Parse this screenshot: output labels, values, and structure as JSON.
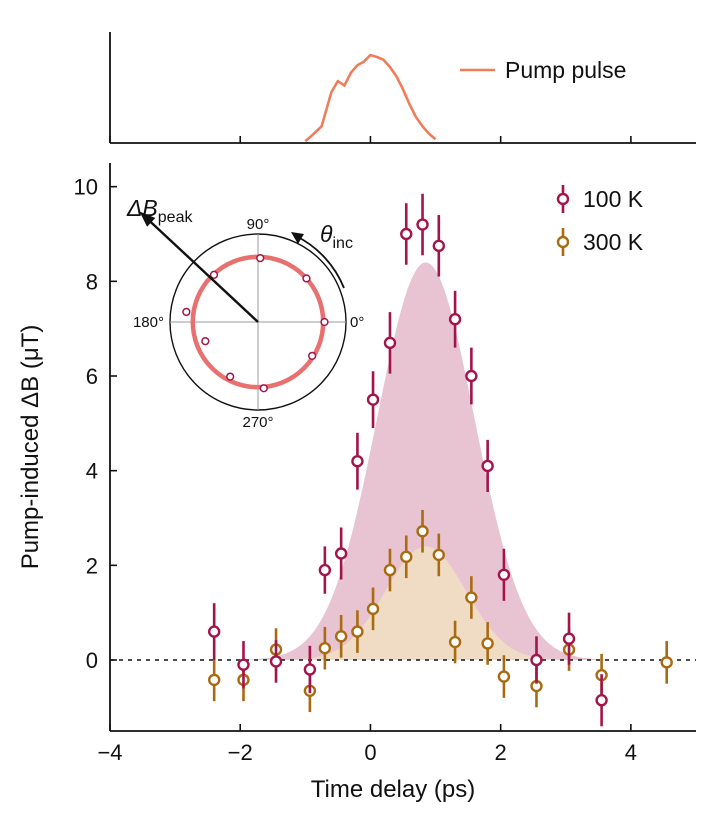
{
  "chart_data": [
    {
      "type": "line",
      "name": "pump-pulse-panel",
      "title": "",
      "legend": {
        "label": "Pump pulse",
        "placement": "top-right"
      },
      "color": "#ef7d5a",
      "series": [
        {
          "name": "Pump pulse",
          "x": [
            -1.0,
            -0.9,
            -0.75,
            -0.6,
            -0.5,
            -0.4,
            -0.3,
            -0.2,
            -0.1,
            0.0,
            0.1,
            0.2,
            0.3,
            0.4,
            0.5,
            0.6,
            0.7,
            0.8,
            0.9,
            1.0
          ],
          "y": [
            0.02,
            0.08,
            0.18,
            0.55,
            0.67,
            0.62,
            0.76,
            0.84,
            0.88,
            0.95,
            0.93,
            0.9,
            0.82,
            0.72,
            0.58,
            0.42,
            0.28,
            0.18,
            0.1,
            0.04
          ]
        }
      ],
      "xlim": [
        -4,
        5
      ],
      "ylim": [
        0,
        1.2
      ]
    },
    {
      "type": "scatter",
      "name": "delta-b-panel",
      "xlabel": "Time delay (ps)",
      "ylabel": "Pump-induced ΔB (μT)",
      "xlim": [
        -4,
        5
      ],
      "ylim": [
        -1.5,
        10.5
      ],
      "xticks": [
        -4,
        -2,
        0,
        2,
        4
      ],
      "xtick_labels": [
        "−4",
        "−2",
        "0",
        "2",
        "4"
      ],
      "yticks": [
        0,
        2,
        4,
        6,
        8,
        10
      ],
      "ytick_labels": [
        "0",
        "2",
        "4",
        "6",
        "8",
        "10"
      ],
      "baseline": 0,
      "legend": {
        "placement": "top-right"
      },
      "series": [
        {
          "name": "100 K",
          "color": "#a3144a",
          "fill_color": "#e8c3d2",
          "x": [
            -2.4,
            -1.95,
            -1.45,
            -0.93,
            -0.7,
            -0.45,
            -0.2,
            0.04,
            0.3,
            0.55,
            0.8,
            1.05,
            1.3,
            1.55,
            1.8,
            2.05,
            2.55,
            3.05,
            3.55
          ],
          "y": [
            0.6,
            -0.1,
            -0.03,
            -0.2,
            1.9,
            2.25,
            4.2,
            5.5,
            6.7,
            9.0,
            9.2,
            8.75,
            7.2,
            6.0,
            4.1,
            1.8,
            0.0,
            0.45,
            -0.85
          ],
          "err": [
            0.6,
            0.5,
            0.45,
            0.5,
            0.5,
            0.55,
            0.6,
            0.6,
            0.65,
            0.65,
            0.65,
            0.65,
            0.6,
            0.6,
            0.55,
            0.55,
            0.5,
            0.55,
            0.55
          ],
          "envelope": {
            "peak": 8.4,
            "center": 0.85,
            "width": 0.75
          }
        },
        {
          "name": "300 K",
          "color": "#a86b10",
          "fill_color": "#f1e0c3",
          "x": [
            -2.4,
            -1.95,
            -1.45,
            -0.93,
            -0.7,
            -0.45,
            -0.2,
            0.04,
            0.3,
            0.55,
            0.8,
            1.05,
            1.3,
            1.55,
            1.8,
            2.05,
            2.55,
            3.05,
            3.55,
            4.55
          ],
          "y": [
            -0.42,
            -0.42,
            0.22,
            -0.65,
            0.25,
            0.5,
            0.6,
            1.08,
            1.9,
            2.18,
            2.72,
            2.22,
            0.38,
            1.32,
            0.35,
            -0.35,
            -0.55,
            0.22,
            -0.32,
            -0.05
          ],
          "err": [
            0.45,
            0.45,
            0.45,
            0.45,
            0.45,
            0.45,
            0.45,
            0.45,
            0.45,
            0.45,
            0.45,
            0.45,
            0.45,
            0.45,
            0.45,
            0.45,
            0.45,
            0.45,
            0.45,
            0.45
          ],
          "envelope": {
            "peak": 2.4,
            "center": 0.85,
            "width": 0.62
          }
        }
      ],
      "inset": {
        "type": "polar",
        "angle_labels": [
          "90°",
          "180°",
          "270°",
          "0°"
        ],
        "arrow_label_main": "ΔB",
        "arrow_label_sub": "peak",
        "rotation_label_main": "θ",
        "rotation_label_sub": "inc",
        "ring_color": "#e8706e",
        "ring_radius": 1.0,
        "r_max": 1.35,
        "arrow_angle_deg": 137,
        "points": [
          {
            "angle_deg": 0,
            "r": 1.02
          },
          {
            "angle_deg": 42,
            "r": 1.0
          },
          {
            "angle_deg": 88,
            "r": 0.98
          },
          {
            "angle_deg": 133,
            "r": 0.99
          },
          {
            "angle_deg": 172,
            "r": 1.11
          },
          {
            "angle_deg": 200,
            "r": 0.86
          },
          {
            "angle_deg": 243,
            "r": 0.94
          },
          {
            "angle_deg": 275,
            "r": 1.02
          },
          {
            "angle_deg": 328,
            "r": 0.98
          }
        ]
      }
    }
  ]
}
